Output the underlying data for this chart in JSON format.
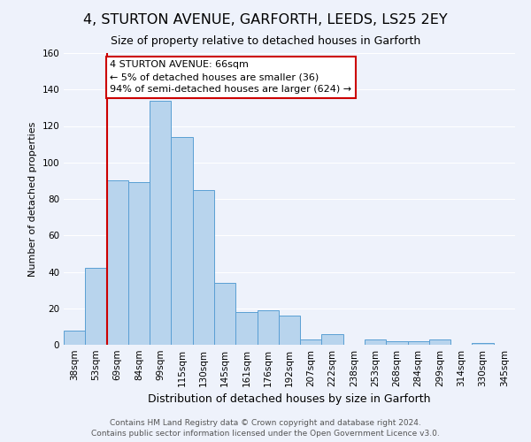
{
  "title": "4, STURTON AVENUE, GARFORTH, LEEDS, LS25 2EY",
  "subtitle": "Size of property relative to detached houses in Garforth",
  "xlabel": "Distribution of detached houses by size in Garforth",
  "ylabel": "Number of detached properties",
  "footer_line1": "Contains HM Land Registry data © Crown copyright and database right 2024.",
  "footer_line2": "Contains public sector information licensed under the Open Government Licence v3.0.",
  "categories": [
    "38sqm",
    "53sqm",
    "69sqm",
    "84sqm",
    "99sqm",
    "115sqm",
    "130sqm",
    "145sqm",
    "161sqm",
    "176sqm",
    "192sqm",
    "207sqm",
    "222sqm",
    "238sqm",
    "253sqm",
    "268sqm",
    "284sqm",
    "299sqm",
    "314sqm",
    "330sqm",
    "345sqm"
  ],
  "bar_heights": [
    8,
    42,
    90,
    89,
    134,
    114,
    85,
    34,
    18,
    19,
    16,
    3,
    6,
    0,
    3,
    2,
    2,
    3,
    0,
    1,
    0
  ],
  "bar_color": "#b8d4ed",
  "bar_edge_color": "#5a9fd4",
  "background_color": "#eef2fb",
  "grid_color": "#ffffff",
  "annotation_box_text": "4 STURTON AVENUE: 66sqm\n← 5% of detached houses are smaller (36)\n94% of semi-detached houses are larger (624) →",
  "annotation_box_color": "#ffffff",
  "annotation_box_edge_color": "#cc0000",
  "vline_color": "#cc0000",
  "ylim": [
    0,
    160
  ],
  "yticks": [
    0,
    20,
    40,
    60,
    80,
    100,
    120,
    140,
    160
  ],
  "title_fontsize": 11.5,
  "subtitle_fontsize": 9,
  "xlabel_fontsize": 9,
  "ylabel_fontsize": 8,
  "tick_fontsize": 7.5,
  "footer_fontsize": 6.5,
  "ann_fontsize": 8
}
